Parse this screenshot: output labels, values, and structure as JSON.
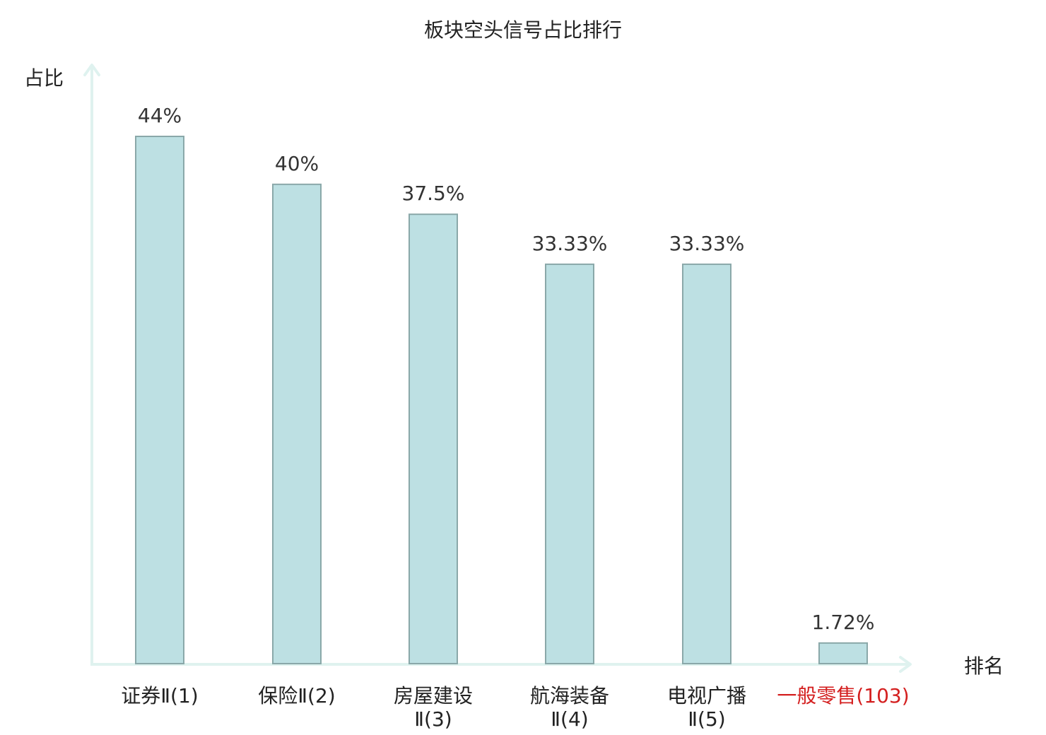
{
  "chart_data": {
    "type": "bar",
    "title": "板块空头信号占比排行",
    "ylabel": "占比",
    "xlabel": "排名",
    "ylim": [
      0,
      48
    ],
    "grid": false,
    "legend": "none",
    "categories": [
      {
        "lines": [
          "证券Ⅱ(1)"
        ],
        "highlight": false
      },
      {
        "lines": [
          "保险Ⅱ(2)"
        ],
        "highlight": false
      },
      {
        "lines": [
          "房屋建设",
          "Ⅱ(3)"
        ],
        "highlight": false
      },
      {
        "lines": [
          "航海装备",
          "Ⅱ(4)"
        ],
        "highlight": false
      },
      {
        "lines": [
          "电视广播",
          "Ⅱ(5)"
        ],
        "highlight": false
      },
      {
        "lines": [
          "一般零售(103)"
        ],
        "highlight": true
      }
    ],
    "values": [
      44,
      40,
      37.5,
      33.33,
      33.33,
      1.72
    ],
    "value_labels": [
      "44%",
      "40%",
      "37.5%",
      "33.33%",
      "33.33%",
      "1.72%"
    ],
    "colors": {
      "bar_fill": "#bde0e3",
      "bar_stroke": "#8aa8a9",
      "axis": "#dff2ef",
      "text": "#222222",
      "highlight": "#d42020"
    }
  }
}
